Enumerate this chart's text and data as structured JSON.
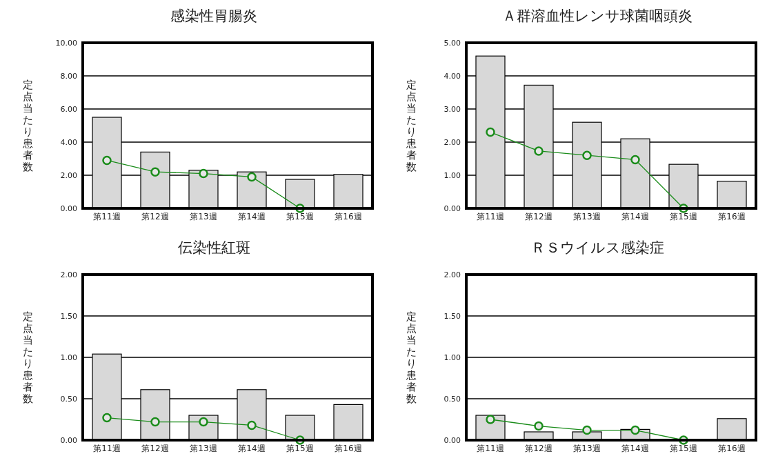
{
  "chart_data": [
    {
      "type": "bar",
      "title": "感染性胃腸炎",
      "ylabel": "定点当たり患者数",
      "categories": [
        "第11週",
        "第12週",
        "第13週",
        "第14週",
        "第15週",
        "第16週"
      ],
      "ylim": [
        0,
        10
      ],
      "yticks": [
        {
          "value": 0,
          "label": "0.00"
        },
        {
          "value": 2,
          "label": "2.00"
        },
        {
          "value": 4,
          "label": "4.00"
        },
        {
          "value": 6,
          "label": "6.00"
        },
        {
          "value": 8,
          "label": "8.00"
        },
        {
          "value": 10,
          "label": "10.00"
        }
      ],
      "grid": "y",
      "marker": "circle",
      "series": [
        {
          "color": "#d8d8d8",
          "values": [
            5.5,
            3.4,
            2.3,
            2.2,
            1.75,
            2.05
          ]
        },
        {
          "type": "line",
          "color": "#1a8c1a",
          "values": [
            2.9,
            2.2,
            2.1,
            1.9,
            0.0,
            null
          ]
        }
      ]
    },
    {
      "type": "bar",
      "title": "Ａ群溶血性レンサ球菌咽頭炎",
      "ylabel": "定点当たり患者数",
      "categories": [
        "第11週",
        "第12週",
        "第13週",
        "第14週",
        "第15週",
        "第16週"
      ],
      "ylim": [
        0,
        5
      ],
      "yticks": [
        {
          "value": 0,
          "label": "0.00"
        },
        {
          "value": 1,
          "label": "1.00"
        },
        {
          "value": 2,
          "label": "2.00"
        },
        {
          "value": 3,
          "label": "3.00"
        },
        {
          "value": 4,
          "label": "4.00"
        },
        {
          "value": 5,
          "label": "5.00"
        }
      ],
      "grid": "y",
      "marker": "circle",
      "series": [
        {
          "color": "#d8d8d8",
          "values": [
            4.6,
            3.72,
            2.6,
            2.1,
            1.33,
            0.82
          ]
        },
        {
          "type": "line",
          "color": "#1a8c1a",
          "values": [
            2.3,
            1.73,
            1.6,
            1.47,
            0.0,
            null
          ]
        }
      ]
    },
    {
      "type": "bar",
      "title": "伝染性紅斑",
      "ylabel": "定点当たり患者数",
      "categories": [
        "第11週",
        "第12週",
        "第13週",
        "第14週",
        "第15週",
        "第16週"
      ],
      "ylim": [
        0,
        2
      ],
      "yticks": [
        {
          "value": 0,
          "label": "0.00"
        },
        {
          "value": 0.5,
          "label": "0.50"
        },
        {
          "value": 1,
          "label": "1.00"
        },
        {
          "value": 1.5,
          "label": "1.50"
        },
        {
          "value": 2,
          "label": "2.00"
        }
      ],
      "grid": "y",
      "marker": "circle",
      "series": [
        {
          "color": "#d8d8d8",
          "values": [
            1.04,
            0.61,
            0.3,
            0.61,
            0.3,
            0.43
          ]
        },
        {
          "type": "line",
          "color": "#1a8c1a",
          "values": [
            0.27,
            0.22,
            0.22,
            0.18,
            0.0,
            null
          ]
        }
      ]
    },
    {
      "type": "bar",
      "title": "ＲＳウイルス感染症",
      "ylabel": "定点当たり患者数",
      "categories": [
        "第11週",
        "第12週",
        "第13週",
        "第14週",
        "第15週",
        "第16週"
      ],
      "ylim": [
        0,
        2
      ],
      "yticks": [
        {
          "value": 0,
          "label": "0.00"
        },
        {
          "value": 0.5,
          "label": "0.50"
        },
        {
          "value": 1,
          "label": "1.00"
        },
        {
          "value": 1.5,
          "label": "1.50"
        },
        {
          "value": 2,
          "label": "2.00"
        }
      ],
      "grid": "y",
      "marker": "circle",
      "series": [
        {
          "color": "#d8d8d8",
          "values": [
            0.3,
            0.1,
            0.1,
            0.13,
            0,
            0.26
          ]
        },
        {
          "type": "line",
          "color": "#1a8c1a",
          "values": [
            0.25,
            0.17,
            0.12,
            0.12,
            0.0,
            null
          ]
        }
      ]
    }
  ]
}
